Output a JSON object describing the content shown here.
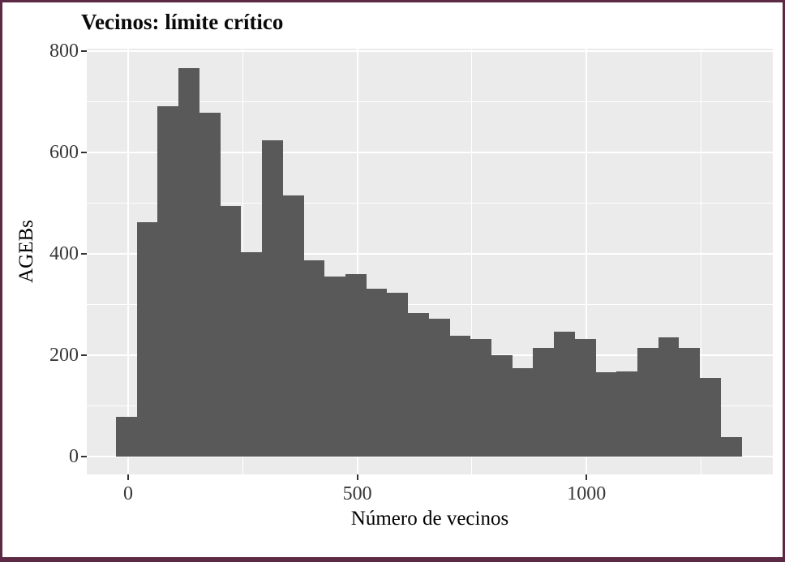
{
  "title": "Vecinos: límite crítico",
  "colors": {
    "frame_border": "#5c2a44",
    "panel_background": "#ebebeb",
    "bar_fill": "#595959",
    "gridline": "#ffffff",
    "tick_mark": "#333333",
    "tick_label_text": "#373737",
    "title_text": "#0a0a0a",
    "axis_title_text": "#000000"
  },
  "x_axis": {
    "label": "Número de vecinos",
    "ticks": [
      0,
      500,
      1000
    ]
  },
  "y_axis": {
    "label": "AGEBs",
    "ticks": [
      0,
      200,
      400,
      600,
      800
    ]
  },
  "chart_data": {
    "type": "bar",
    "subtype": "histogram",
    "title": "Vecinos: límite crítico",
    "xlabel": "Número de vecinos",
    "ylabel": "AGEBs",
    "bin_start": -26.5,
    "bin_width": 45.5,
    "bin_centers": [
      -3.75,
      41.75,
      87.25,
      132.75,
      178.25,
      223.75,
      269.25,
      314.75,
      360.25,
      405.75,
      451.25,
      496.75,
      542.25,
      587.75,
      633.25,
      678.75,
      724.25,
      769.75,
      815.25,
      860.75,
      906.25,
      951.75,
      997.25,
      1042.75,
      1088.25,
      1133.75,
      1179.25,
      1224.75,
      1270.25,
      1315.75
    ],
    "counts": [
      78,
      462,
      690,
      766,
      678,
      494,
      402,
      623,
      515,
      386,
      355,
      360,
      330,
      322,
      283,
      271,
      238,
      232,
      200,
      174,
      213,
      246,
      232,
      166,
      168,
      213,
      235,
      213,
      155,
      38
    ],
    "xlim": [
      -95,
      1407
    ],
    "ylim": [
      -38,
      804
    ],
    "x_major_gridlines": [
      0,
      500,
      1000
    ],
    "x_minor_gridlines": [
      250,
      750,
      1250
    ],
    "y_major_gridlines": [
      0,
      200,
      400,
      600,
      800
    ],
    "y_minor_gridlines": [
      100,
      300,
      500,
      700
    ],
    "grid": true,
    "legend": false
  }
}
